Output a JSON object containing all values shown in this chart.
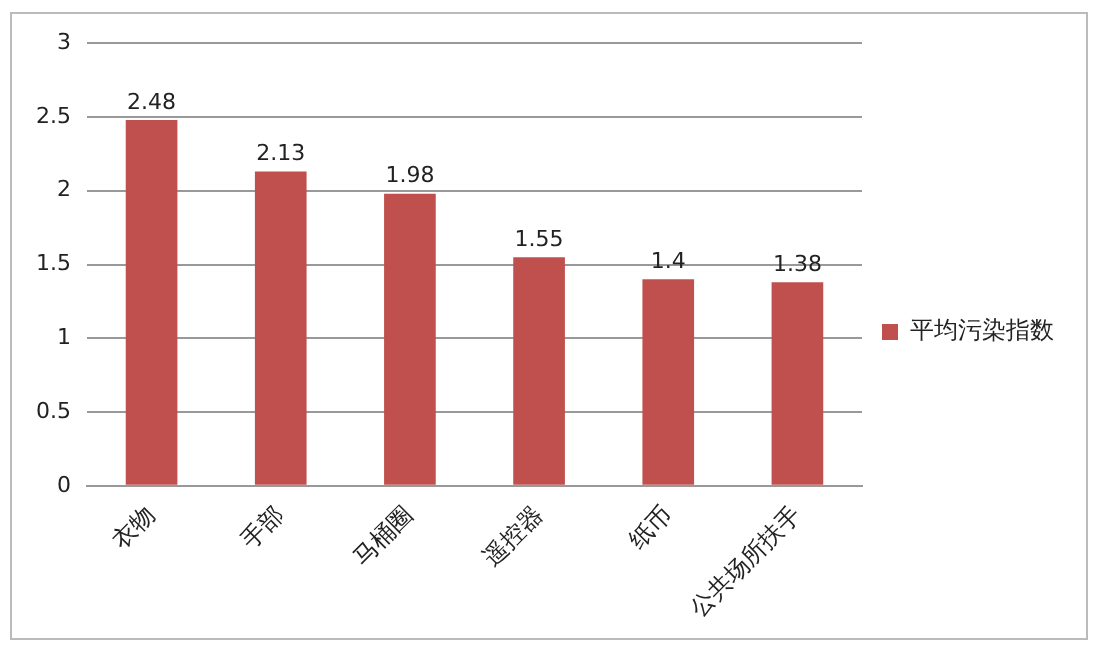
{
  "chart_data": {
    "type": "bar",
    "categories": [
      "衣物",
      "手部",
      "马桶圈",
      "遥控器",
      "纸币",
      "公共场所扶手"
    ],
    "series": [
      {
        "name": "平均污染指数",
        "color": "#c0504d",
        "values": [
          2.48,
          2.13,
          1.98,
          1.55,
          1.4,
          1.38
        ]
      }
    ],
    "ylim": [
      0,
      3
    ],
    "yticks": [
      0,
      0.5,
      1,
      1.5,
      2,
      2.5,
      3
    ],
    "grid": "y",
    "legend": "right",
    "data_labels": true
  }
}
